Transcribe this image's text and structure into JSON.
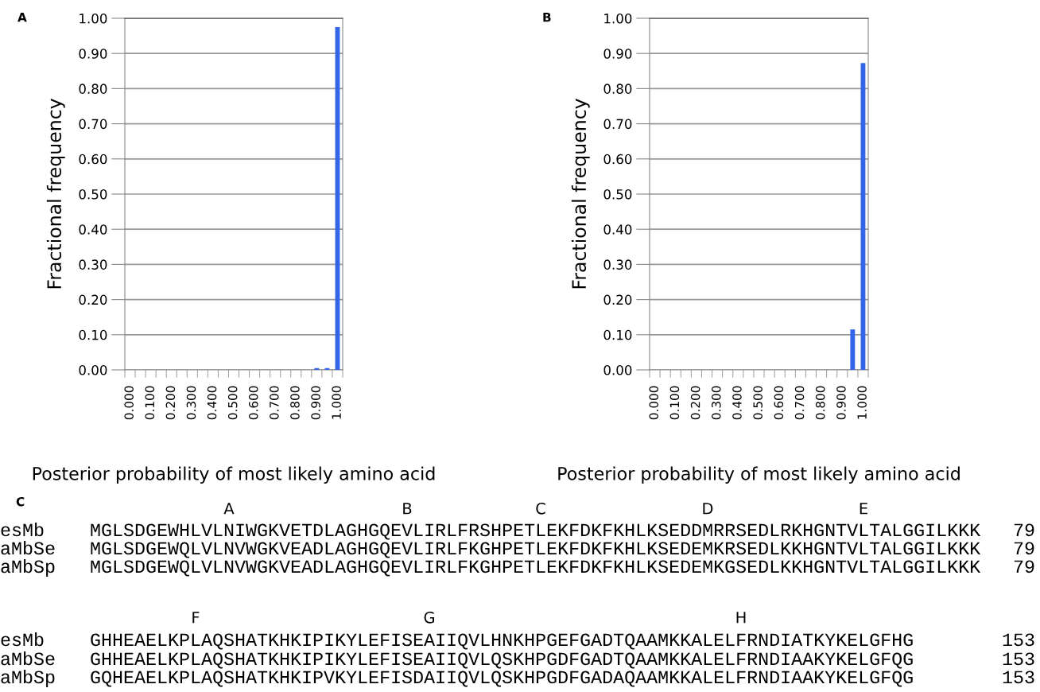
{
  "chart_data": [
    {
      "type": "bar",
      "title": "A",
      "xlabel": "Posterior probability of most likely amino acid",
      "ylabel": "Fractional frequency",
      "categories": [
        "0.000",
        null,
        "0.100",
        null,
        "0.200",
        null,
        "0.300",
        null,
        "0.400",
        null,
        "0.500",
        null,
        "0.600",
        null,
        "0.700",
        null,
        "0.800",
        null,
        "0.900",
        null,
        "1.000"
      ],
      "values": [
        0,
        0,
        0,
        0,
        0,
        0,
        0,
        0,
        0,
        0,
        0,
        0,
        0,
        0,
        0,
        0,
        0,
        0,
        0.005,
        0.005,
        0.975
      ],
      "color": "#3366e6",
      "ylim": [
        0,
        1
      ],
      "yticks": [
        {
          "value": 0,
          "label": "0.00"
        },
        {
          "value": 0.1,
          "label": "0.10"
        },
        {
          "value": 0.2,
          "label": "0.20"
        },
        {
          "value": 0.3,
          "label": "0.30"
        },
        {
          "value": 0.4,
          "label": "0.40"
        },
        {
          "value": 0.5,
          "label": "0.50"
        },
        {
          "value": 0.6,
          "label": "0.60"
        },
        {
          "value": 0.7,
          "label": "0.70"
        },
        {
          "value": 0.8,
          "label": "0.80"
        },
        {
          "value": 0.9,
          "label": "0.90"
        },
        {
          "value": 1,
          "label": "1.00"
        }
      ],
      "grid": "y"
    },
    {
      "type": "bar",
      "title": "B",
      "xlabel": "Posterior probability of most likely amino acid",
      "ylabel": "Fractional frequency",
      "categories": [
        "0.000",
        null,
        "0.100",
        null,
        "0.200",
        null,
        "0.300",
        null,
        "0.400",
        null,
        "0.500",
        null,
        "0.600",
        null,
        "0.700",
        null,
        "0.800",
        null,
        "0.900",
        null,
        "1.000"
      ],
      "values": [
        0,
        0,
        0,
        0,
        0,
        0,
        0,
        0,
        0,
        0,
        0,
        0,
        0,
        0,
        0,
        0,
        0,
        0,
        0,
        0.115,
        0.873
      ],
      "color": "#3366e6",
      "ylim": [
        0,
        1
      ],
      "yticks": [
        {
          "value": 0,
          "label": "0.00"
        },
        {
          "value": 0.1,
          "label": "0.10"
        },
        {
          "value": 0.2,
          "label": "0.20"
        },
        {
          "value": 0.3,
          "label": "0.30"
        },
        {
          "value": 0.4,
          "label": "0.40"
        },
        {
          "value": 0.5,
          "label": "0.50"
        },
        {
          "value": 0.6,
          "label": "0.60"
        },
        {
          "value": 0.7,
          "label": "0.70"
        },
        {
          "value": 0.8,
          "label": "0.80"
        },
        {
          "value": 0.9,
          "label": "0.90"
        },
        {
          "value": 1,
          "label": "1.00"
        }
      ],
      "grid": "y"
    },
    {
      "type": "other",
      "title": "C",
      "annotations": [
        "A",
        "B",
        "C",
        "D",
        "E",
        "esMb",
        "MGLSDGEWHLVLNIWGKVETDLAGHGQEVLIRLFRSHPETLEKFDKFKHLKSEDDMRRSEDLRKHGNTVLTALGGILKKK",
        "79",
        "aMbSe",
        "MGLSDGEWQLVLNVWGKVEADLAGHGQEVLIRLFKGHPETLEKFDKFKHLKSEDEMKRSEDLKKHGNTVLTALGGILKKK",
        "79",
        "aMbSp",
        "MGLSDGEWQLVLNVWGKVEADLAGHGQEVLIRLFKGHPETLEKFDKFKHLKSEDEMKGSEDLKKHGNTVLTALGGILKKK",
        "79",
        "F",
        "G",
        "H",
        "esMb",
        "GHHEAELKPLAQSHATKHKIPIKYLEFISEAIIQVLHNKHPGEFGADTQAAMKKALELFRNDIATKYKELGFHG",
        "153",
        "aMbSe",
        "GHHEAELKPLAQSHATKHKIPIKYLEFISEAIIQVLQSKHPGDFGADTQAAMKKALELFRNDIAAKYKELGFQG",
        "153",
        "aMbSp",
        "GQHEAELKPLAQSHATKHKIPVKYLEFISDAIIQVLQSKHPGDFGADAQAAMKKALELFRNDIAAKYKELGFQG",
        "153"
      ]
    }
  ]
}
